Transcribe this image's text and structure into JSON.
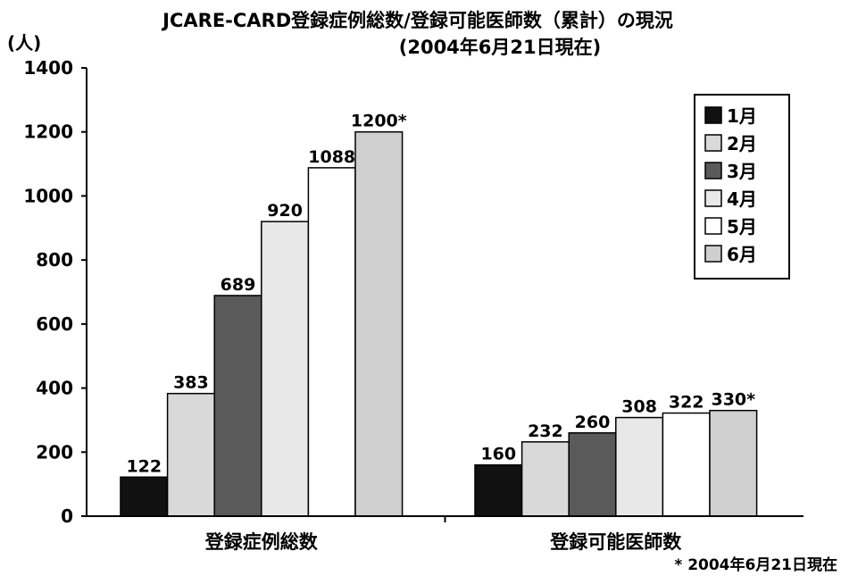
{
  "chart_data": {
    "type": "bar",
    "title": "JCARE-CARD登録症例総数/登録可能医師数（累計）の現況",
    "subtitle": "(2004年6月21日現在)",
    "ylabel": "(人)",
    "ylim": [
      0,
      1400
    ],
    "yticks": [
      "0",
      "200",
      "400",
      "600",
      "800",
      "1000",
      "1200",
      "1400"
    ],
    "grid": false,
    "legend_position": "top-right",
    "categories": [
      "登録症例総数",
      "登録可能医師数"
    ],
    "series": [
      {
        "name": "1月",
        "values": [
          122,
          160
        ],
        "labels": [
          "122",
          "160"
        ],
        "color": "#111111"
      },
      {
        "name": "2月",
        "values": [
          383,
          232
        ],
        "labels": [
          "383",
          "232"
        ],
        "color": "#d9d9d9"
      },
      {
        "name": "3月",
        "values": [
          689,
          260
        ],
        "labels": [
          "689",
          "260"
        ],
        "color": "#5a5a5a"
      },
      {
        "name": "4月",
        "values": [
          920,
          308
        ],
        "labels": [
          "920",
          "308"
        ],
        "color": "#e8e8e8"
      },
      {
        "name": "5月",
        "values": [
          1088,
          322
        ],
        "labels": [
          "1088",
          "322"
        ],
        "color": "#ffffff"
      },
      {
        "name": "6月",
        "values": [
          1200,
          330
        ],
        "labels": [
          "1200*",
          "330*"
        ],
        "color": "#cfcfcf"
      }
    ],
    "footnote": "* 2004年6月21日現在"
  }
}
